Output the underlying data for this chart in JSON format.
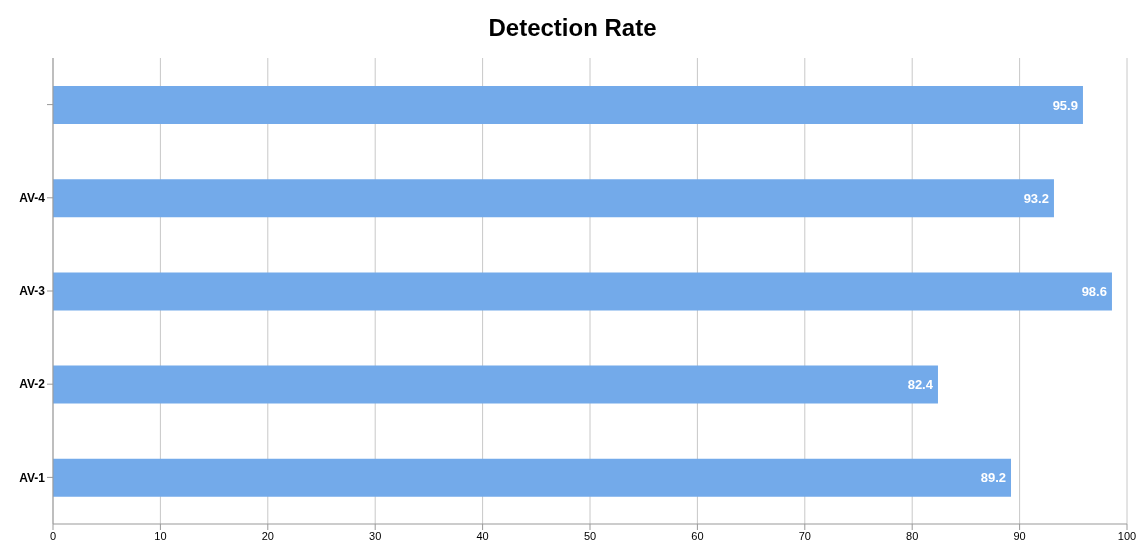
{
  "chart_data": {
    "type": "bar",
    "title": "Detection Rate",
    "orientation": "horizontal",
    "categories": [
      null,
      "AV-4",
      "AV-3",
      "AV-2",
      "AV-1"
    ],
    "values": [
      95.9,
      93.2,
      98.6,
      82.4,
      89.2
    ],
    "color": "#73aaea",
    "xlim": [
      0,
      100
    ],
    "xticks": [
      0,
      10,
      20,
      30,
      40,
      50,
      60,
      70,
      80,
      90,
      100
    ],
    "grid": "x",
    "data_labels": true
  }
}
